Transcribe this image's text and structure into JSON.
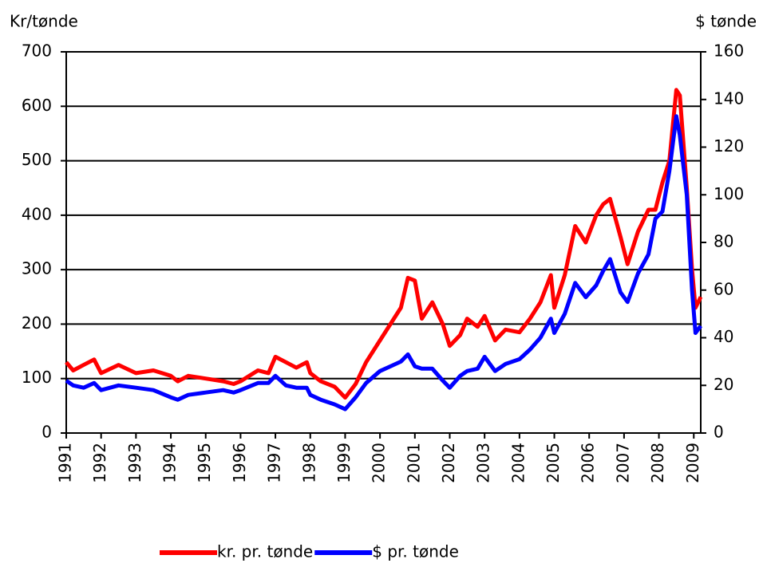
{
  "chart_data": {
    "type": "line",
    "y_label": "Kr/tønde",
    "y2_label": "$ tønde",
    "x": [
      1991.0,
      1991.2,
      1991.5,
      1991.8,
      1992.0,
      1992.5,
      1993.0,
      1993.5,
      1994.0,
      1994.2,
      1994.5,
      1995.0,
      1995.5,
      1995.8,
      1996.0,
      1996.5,
      1996.8,
      1997.0,
      1997.3,
      1997.6,
      1997.9,
      1998.0,
      1998.3,
      1998.7,
      1999.0,
      1999.3,
      1999.6,
      2000.0,
      2000.3,
      2000.6,
      2000.8,
      2001.0,
      2001.2,
      2001.5,
      2001.8,
      2002.0,
      2002.3,
      2002.5,
      2002.8,
      2003.0,
      2003.3,
      2003.6,
      2004.0,
      2004.3,
      2004.6,
      2004.9,
      2005.0,
      2005.3,
      2005.6,
      2005.9,
      2006.2,
      2006.4,
      2006.6,
      2006.9,
      2007.1,
      2007.4,
      2007.7,
      2007.9,
      2008.1,
      2008.3,
      2008.5,
      2008.6,
      2008.8,
      2008.95,
      2009.05,
      2009.2
    ],
    "series": [
      {
        "name": "kr. pr. tønde",
        "color": "#ff0000",
        "values": [
          130,
          115,
          125,
          135,
          110,
          125,
          110,
          115,
          105,
          95,
          105,
          100,
          95,
          90,
          95,
          115,
          110,
          140,
          130,
          120,
          130,
          110,
          95,
          85,
          65,
          90,
          130,
          170,
          200,
          230,
          285,
          280,
          210,
          240,
          200,
          160,
          180,
          210,
          195,
          215,
          170,
          190,
          185,
          210,
          240,
          290,
          230,
          290,
          380,
          350,
          400,
          420,
          430,
          360,
          310,
          370,
          410,
          410,
          460,
          500,
          630,
          620,
          450,
          300,
          230,
          250
        ]
      },
      {
        "name": "$ pr. tønde",
        "color": "#0000ff",
        "axis": "y2",
        "values": [
          22,
          20,
          19,
          21,
          18,
          20,
          19,
          18,
          15,
          14,
          16,
          17,
          18,
          17,
          18,
          21,
          21,
          24,
          20,
          19,
          19,
          16,
          14,
          12,
          10,
          15,
          21,
          26,
          28,
          30,
          33,
          28,
          27,
          27,
          22,
          19,
          24,
          26,
          27,
          32,
          26,
          29,
          31,
          35,
          40,
          48,
          42,
          50,
          63,
          57,
          62,
          68,
          73,
          59,
          55,
          67,
          75,
          90,
          93,
          110,
          133,
          125,
          100,
          60,
          42,
          45
        ]
      }
    ],
    "xlim": [
      1991,
      2009.2
    ],
    "xticks": [
      1991,
      1992,
      1993,
      1994,
      1995,
      1996,
      1997,
      1998,
      1999,
      2000,
      2001,
      2002,
      2003,
      2004,
      2005,
      2006,
      2007,
      2008,
      2009
    ],
    "ylim": [
      0,
      700
    ],
    "yticks": [
      0,
      100,
      200,
      300,
      400,
      500,
      600,
      700
    ],
    "y2lim": [
      0,
      160
    ],
    "y2ticks": [
      0,
      20,
      40,
      60,
      80,
      100,
      120,
      140,
      160
    ],
    "grid": true,
    "legend": "bottom"
  }
}
